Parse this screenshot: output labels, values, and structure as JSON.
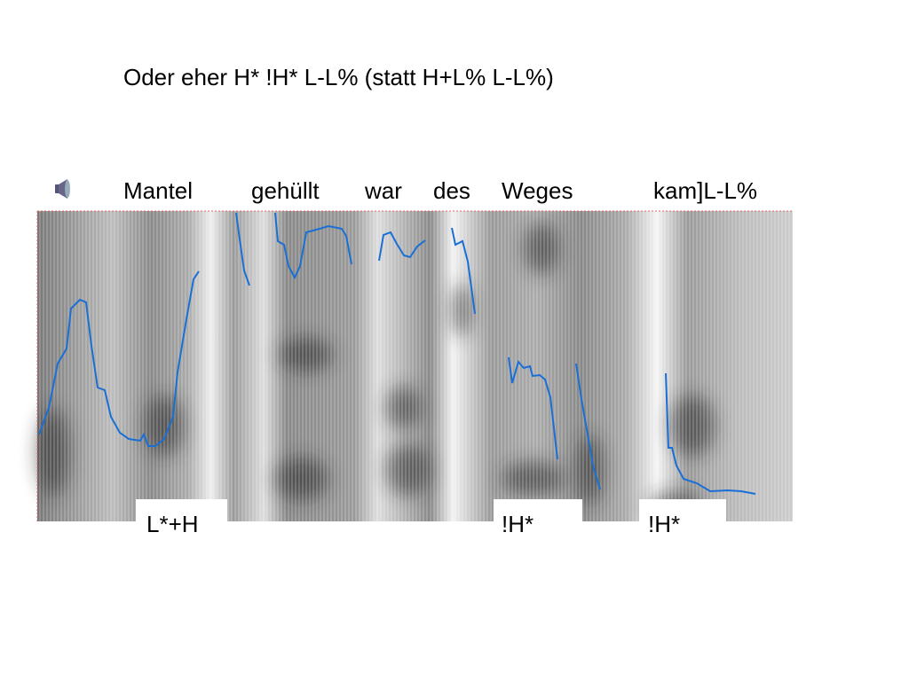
{
  "title": "Oder eher H* !H* L-L% (statt H+L% L-L%)",
  "words": [
    "Mantel",
    "gehüllt",
    "war",
    "des",
    "Weges",
    "kam]L-L%"
  ],
  "tones": [
    "L*+H",
    "!H*",
    "!H*"
  ]
}
